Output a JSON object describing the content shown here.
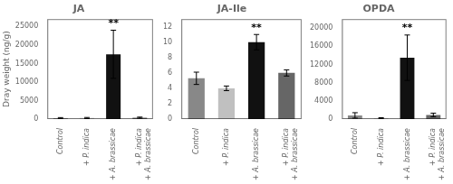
{
  "chart_data": [
    {
      "type": "bar",
      "title": "JA",
      "ylabel": "Dray weight (ng/g)",
      "categories": [
        "Control",
        "+ P. indica",
        "+ A. brassicae",
        "+ P. indica\n+ A. brassicae"
      ],
      "values": [
        250,
        280,
        17500,
        380
      ],
      "errors": [
        150,
        150,
        6500,
        150
      ],
      "colors": [
        "#888888",
        "#c0c0c0",
        "#111111",
        "#666666"
      ],
      "ylim": [
        0,
        27000
      ],
      "yticks": [
        0,
        5000,
        10000,
        15000,
        20000,
        25000
      ],
      "grid": false,
      "annotations": [
        {
          "text": "**",
          "category": "+ A. brassicae"
        }
      ]
    },
    {
      "type": "bar",
      "title": "JA-Ile",
      "categories": [
        "Control",
        "+ P. indica",
        "+ A. brassicae",
        "+ P. indica\n+ A. brassicae"
      ],
      "values": [
        5.3,
        4.0,
        10.0,
        6.0
      ],
      "errors": [
        0.8,
        0.3,
        1.0,
        0.4
      ],
      "colors": [
        "#888888",
        "#c0c0c0",
        "#111111",
        "#666666"
      ],
      "ylim": [
        0,
        13
      ],
      "yticks": [
        0,
        2,
        4,
        6,
        8,
        10,
        12
      ],
      "grid": false,
      "annotations": [
        {
          "text": "**",
          "category": "+ A. brassicae"
        }
      ]
    },
    {
      "type": "bar",
      "title": "OPDA",
      "categories": [
        "Control",
        "+ P. indica",
        "+ A. brassicae",
        "+ P. indica\n+ A. brassicae"
      ],
      "values": [
        800,
        200,
        13500,
        900
      ],
      "errors": [
        600,
        100,
        5000,
        400
      ],
      "colors": [
        "#888888",
        "#c0c0c0",
        "#111111",
        "#666666"
      ],
      "ylim": [
        0,
        22000
      ],
      "yticks": [
        0,
        4000,
        8000,
        12000,
        16000,
        20000
      ],
      "grid": false,
      "annotations": [
        {
          "text": "**",
          "category": "+ A. brassicae"
        }
      ]
    }
  ]
}
